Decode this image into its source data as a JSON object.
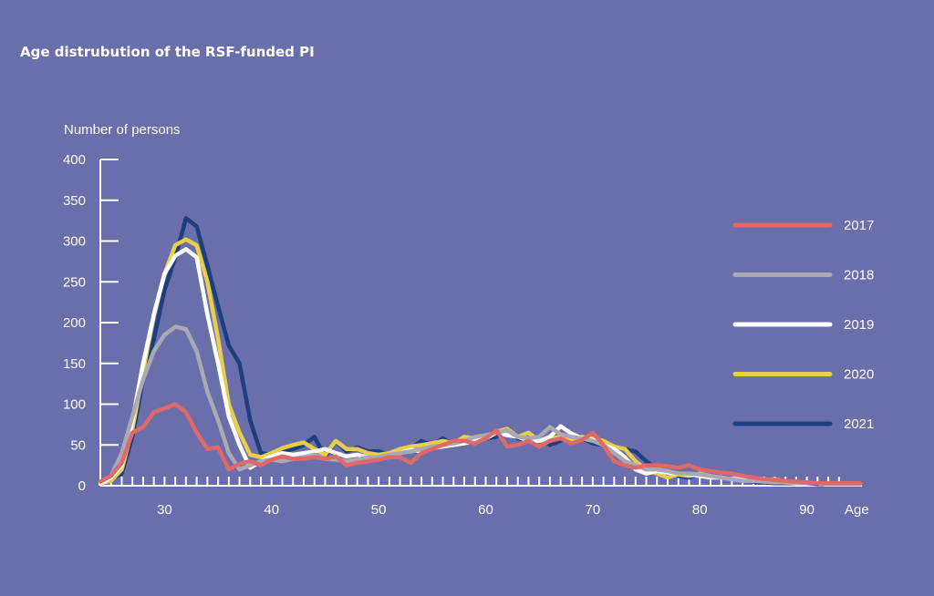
{
  "chart_data": {
    "type": "line",
    "title": "Age distrubution of the RSF-funded PI",
    "ylabel": "Number of persons",
    "xlabel": "Age",
    "xlim": [
      24,
      96
    ],
    "ylim": [
      0,
      400
    ],
    "x_ticks": [
      30,
      40,
      50,
      60,
      70,
      80,
      90
    ],
    "y_ticks": [
      0,
      50,
      100,
      150,
      200,
      250,
      300,
      350,
      400
    ],
    "grid": false,
    "legend_position": "right",
    "x": [
      24,
      25,
      26,
      27,
      28,
      29,
      30,
      31,
      32,
      33,
      34,
      35,
      36,
      37,
      38,
      39,
      40,
      41,
      42,
      43,
      44,
      45,
      46,
      47,
      48,
      49,
      50,
      51,
      52,
      53,
      54,
      55,
      56,
      57,
      58,
      59,
      60,
      61,
      62,
      63,
      64,
      65,
      66,
      67,
      68,
      69,
      70,
      71,
      72,
      73,
      74,
      75,
      76,
      77,
      78,
      79,
      80,
      81,
      82,
      83,
      84,
      85,
      86,
      87,
      88,
      89,
      90,
      91,
      92,
      93,
      94,
      95
    ],
    "series": [
      {
        "name": "2021",
        "color": "#1d3f7e",
        "values": [
          2,
          8,
          15,
          60,
          130,
          180,
          240,
          280,
          328,
          318,
          270,
          220,
          172,
          150,
          80,
          40,
          38,
          42,
          45,
          50,
          60,
          35,
          55,
          42,
          47,
          42,
          42,
          38,
          40,
          46,
          55,
          50,
          58,
          50,
          52,
          55,
          58,
          60,
          70,
          58,
          55,
          60,
          50,
          55,
          60,
          58,
          52,
          50,
          48,
          45,
          42,
          30,
          20,
          15,
          12,
          10,
          15,
          12,
          10,
          8,
          8,
          5,
          4,
          3,
          3,
          3,
          3,
          2,
          2,
          2,
          2,
          3
        ]
      },
      {
        "name": "2020",
        "color": "#e8cf4a",
        "values": [
          3,
          6,
          20,
          70,
          140,
          210,
          260,
          295,
          302,
          295,
          250,
          180,
          100,
          65,
          38,
          35,
          40,
          46,
          50,
          53,
          45,
          38,
          55,
          45,
          45,
          40,
          38,
          40,
          45,
          48,
          50,
          52,
          55,
          52,
          60,
          58,
          60,
          66,
          70,
          60,
          65,
          55,
          58,
          60,
          55,
          60,
          58,
          55,
          48,
          45,
          30,
          20,
          15,
          10,
          14,
          12,
          15,
          12,
          10,
          8,
          12,
          6,
          6,
          8,
          5,
          4,
          3,
          3,
          2,
          2,
          2,
          2
        ]
      },
      {
        "name": "2019",
        "color": "#ffffff",
        "values": [
          2,
          10,
          25,
          80,
          150,
          210,
          260,
          282,
          290,
          280,
          210,
          150,
          85,
          50,
          22,
          30,
          36,
          40,
          38,
          40,
          42,
          45,
          40,
          36,
          38,
          35,
          32,
          38,
          40,
          44,
          42,
          46,
          48,
          50,
          52,
          55,
          58,
          65,
          62,
          60,
          55,
          55,
          60,
          73,
          64,
          58,
          56,
          50,
          45,
          35,
          20,
          15,
          18,
          16,
          15,
          14,
          12,
          10,
          10,
          8,
          7,
          6,
          6,
          5,
          4,
          4,
          3,
          3,
          2,
          2,
          2,
          2
        ]
      },
      {
        "name": "2018",
        "color": "#a9a9b4",
        "values": [
          5,
          12,
          40,
          85,
          130,
          165,
          185,
          195,
          192,
          165,
          115,
          80,
          40,
          20,
          25,
          30,
          32,
          30,
          33,
          35,
          38,
          33,
          32,
          30,
          32,
          35,
          35,
          38,
          40,
          42,
          45,
          48,
          50,
          52,
          55,
          60,
          62,
          65,
          68,
          60,
          58,
          60,
          72,
          63,
          60,
          58,
          55,
          50,
          40,
          30,
          25,
          20,
          20,
          18,
          15,
          15,
          14,
          12,
          10,
          8,
          6,
          6,
          5,
          4,
          4,
          3,
          3,
          3,
          2,
          2,
          2,
          2
        ]
      },
      {
        "name": "2017",
        "color": "#e16868",
        "values": [
          5,
          12,
          28,
          65,
          72,
          90,
          95,
          100,
          90,
          65,
          45,
          47,
          20,
          27,
          30,
          25,
          32,
          36,
          33,
          33,
          35,
          33,
          36,
          25,
          28,
          30,
          32,
          35,
          35,
          28,
          40,
          45,
          50,
          55,
          55,
          52,
          58,
          68,
          48,
          50,
          55,
          48,
          55,
          58,
          52,
          56,
          65,
          50,
          30,
          25,
          22,
          25,
          25,
          24,
          22,
          25,
          20,
          18,
          16,
          15,
          12,
          10,
          8,
          7,
          6,
          5,
          4,
          3,
          3,
          3,
          3,
          3
        ]
      }
    ]
  }
}
